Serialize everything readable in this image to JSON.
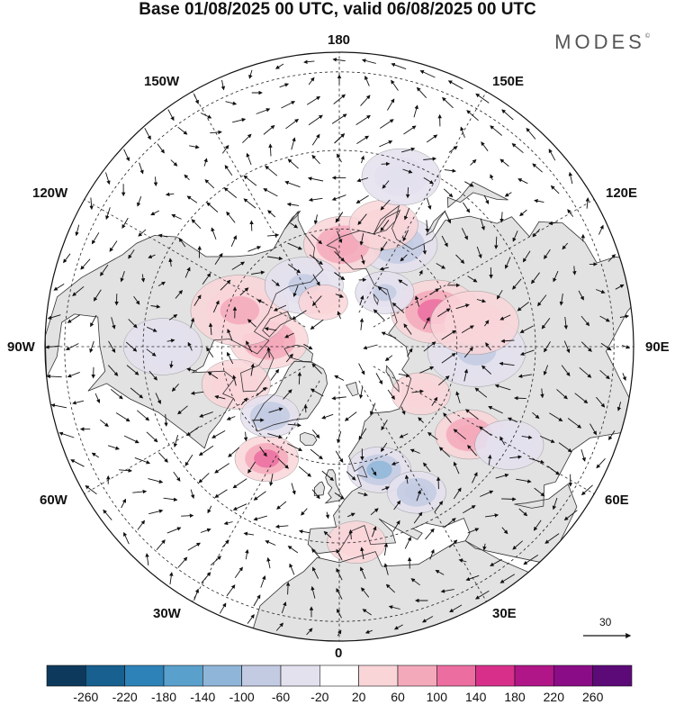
{
  "title": "Base 01/08/2025 00 UTC, valid 06/08/2025 00 UTC",
  "brand": {
    "name": "MODES",
    "mark": "©"
  },
  "meridian_labels": {
    "north": "180",
    "south": "0",
    "west": "90W",
    "east": "90E",
    "nw_upper": "150W",
    "nw_lower": "120W",
    "ne_upper": "150E",
    "ne_lower": "120E",
    "sw_upper": "60W",
    "sw_lower": "30W",
    "se_upper": "60E",
    "se_lower": "30E"
  },
  "reference_vector": {
    "value": "30"
  },
  "colorbar": {
    "ticks": [
      "-260",
      "-220",
      "-180",
      "-140",
      "-100",
      "-60",
      "-20",
      "20",
      "60",
      "100",
      "140",
      "180",
      "220",
      "260"
    ],
    "colors": [
      "#0d3a5c",
      "#17608f",
      "#2d82b8",
      "#5aa0cc",
      "#8fb6d9",
      "#c3cbe3",
      "#e4e1ef",
      "#ffffff",
      "#f9d5d8",
      "#f4a9bb",
      "#ec6ea0",
      "#d8308a",
      "#b01687",
      "#8a0c86",
      "#5c0a78"
    ]
  },
  "colors": {
    "land": "#e2e2e2",
    "ocean": "#ffffff",
    "coast": "#333333",
    "grid": "#222222"
  },
  "anomalies": [
    {
      "lat": 56,
      "lon": -33,
      "r": 6.5,
      "val": 120
    },
    {
      "lat": 57,
      "lon": 18,
      "r": 6.5,
      "val": -110
    },
    {
      "lat": 48,
      "lon": 28,
      "r": 6,
      "val": -90
    },
    {
      "lat": 50,
      "lon": 56,
      "r": 7,
      "val": 90
    },
    {
      "lat": 55,
      "lon": 88,
      "r": 10,
      "val": -60
    },
    {
      "lat": 64,
      "lon": 110,
      "r": 9,
      "val": 110
    },
    {
      "lat": 55,
      "lon": 100,
      "r": 9,
      "val": 60
    },
    {
      "lat": 60,
      "lon": 150,
      "r": 8,
      "val": -90
    },
    {
      "lat": 64,
      "lon": 178,
      "r": 8,
      "val": 100
    },
    {
      "lat": 57,
      "lon": 160,
      "r": 7,
      "val": 60
    },
    {
      "lat": 44,
      "lon": 160,
      "r": 8,
      "val": -40
    },
    {
      "lat": 72,
      "lon": -95,
      "r": 8,
      "val": 100
    },
    {
      "lat": 63,
      "lon": -110,
      "r": 10,
      "val": 80
    },
    {
      "lat": 62,
      "lon": -70,
      "r": 7,
      "val": 60
    },
    {
      "lat": 65,
      "lon": -45,
      "r": 6,
      "val": -90
    },
    {
      "lat": 72,
      "lon": -150,
      "r": 8,
      "val": -70
    },
    {
      "lat": 78,
      "lon": -160,
      "r": 5,
      "val": 60
    },
    {
      "lat": 66,
      "lon": 60,
      "r": 6,
      "val": 40
    },
    {
      "lat": 40,
      "lon": 5,
      "r": 6,
      "val": 40
    },
    {
      "lat": 40,
      "lon": 60,
      "r": 7,
      "val": -50
    },
    {
      "lat": 72,
      "lon": 140,
      "r": 6,
      "val": -70
    },
    {
      "lat": 45,
      "lon": -90,
      "r": 8,
      "val": -40
    }
  ]
}
